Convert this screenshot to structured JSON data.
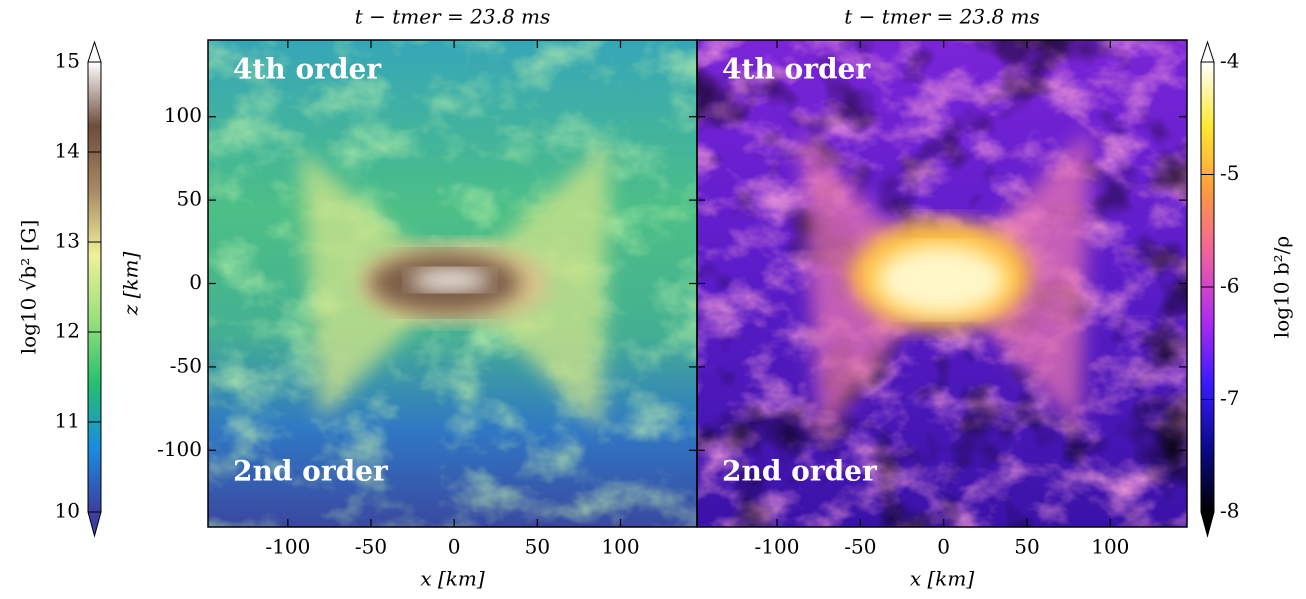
{
  "chart_data": [
    {
      "type": "heatmap",
      "title": "t − tmer = 23.8 ms",
      "xlabel": "x [km]",
      "ylabel": "z [km]",
      "xlim": [
        -148,
        146
      ],
      "xticks": [
        -100,
        -50,
        0,
        50,
        100
      ],
      "ylim": [
        -146,
        146
      ],
      "yticks": [
        -100,
        -50,
        0,
        50,
        100
      ],
      "annotations": [
        "4th order",
        "2nd order"
      ],
      "colorbar": {
        "label": "log10 √b² [G]",
        "side": "left",
        "lim": [
          10,
          15
        ],
        "ticks": [
          10,
          11,
          12,
          13,
          14,
          15
        ],
        "colors": [
          "#3b3f9f",
          "#1a8ce0",
          "#25c06f",
          "#9be07c",
          "#f0f09a",
          "#a88a64",
          "#6e4c3c",
          "#ffffff"
        ]
      }
    },
    {
      "type": "heatmap",
      "title": "t − tmer = 23.8 ms",
      "xlabel": "x [km]",
      "xlim": [
        -148,
        146
      ],
      "xticks": [
        -100,
        -50,
        0,
        50,
        100
      ],
      "ylim": [
        -146,
        146
      ],
      "yticks": [
        -100,
        -50,
        0,
        50,
        100
      ],
      "annotations": [
        "4th order",
        "2nd order"
      ],
      "colorbar": {
        "label": "log10 b²/ρ",
        "side": "right",
        "lim": [
          -8,
          -4
        ],
        "ticks": [
          -8,
          -7,
          -6,
          -5,
          -4
        ],
        "colors": [
          "#000000",
          "#0a0a8c",
          "#3a1aff",
          "#b02cf0",
          "#f060a0",
          "#ff9a40",
          "#ffe830",
          "#ffffff"
        ]
      }
    }
  ]
}
